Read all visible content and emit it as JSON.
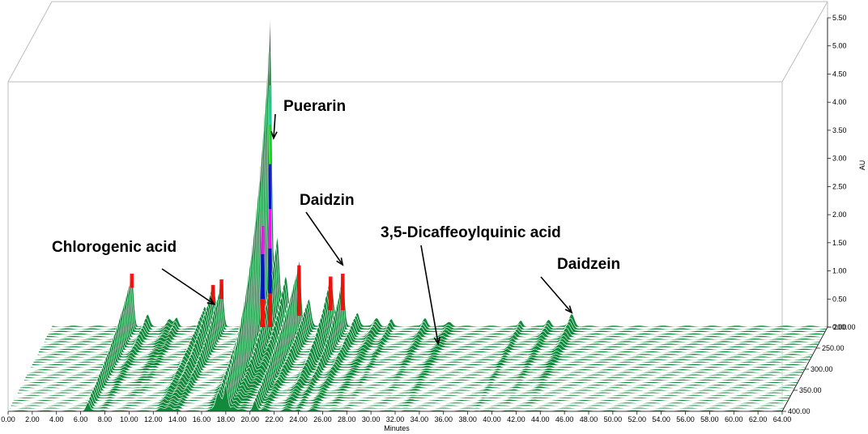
{
  "chart_data": {
    "type": "area",
    "title": "",
    "xlabel": "Minutes",
    "ylabel": "AU",
    "zlabel": "",
    "x_ticks": [
      "0.00",
      "2.00",
      "4.00",
      "6.00",
      "8.00",
      "10.00",
      "12.00",
      "14.00",
      "16.00",
      "18.00",
      "20.00",
      "22.00",
      "24.00",
      "26.00",
      "28.00",
      "30.00",
      "32.00",
      "34.00",
      "36.00",
      "38.00",
      "40.00",
      "42.00",
      "44.00",
      "46.00",
      "48.00",
      "50.00",
      "52.00",
      "54.00",
      "56.00",
      "58.00",
      "60.00",
      "62.00",
      "64.00"
    ],
    "y_ticks": [
      "0.00",
      "0.50",
      "1.00",
      "1.50",
      "2.00",
      "2.50",
      "3.00",
      "3.50",
      "4.00",
      "4.50",
      "5.00",
      "5.50"
    ],
    "z_ticks": [
      "200.00",
      "250.00",
      "300.00",
      "350.00",
      "400.00"
    ],
    "xlim": [
      0,
      64
    ],
    "ylim": [
      0,
      5.5
    ],
    "zlim": [
      200,
      400
    ],
    "series_color": "#118a3c",
    "band_colors": [
      "#118a3c",
      "#ff0000",
      "#0000cc",
      "#ff00ff",
      "#00ff00",
      "#00ffff"
    ],
    "peaks": [
      {
        "x": 6.6,
        "h": 0.95
      },
      {
        "x": 7.9,
        "h": 0.2
      },
      {
        "x": 9.7,
        "h": 0.12
      },
      {
        "x": 10.3,
        "h": 0.15
      },
      {
        "x": 12.6,
        "h": 0.35
      },
      {
        "x": 13.3,
        "h": 0.75
      },
      {
        "x": 14.0,
        "h": 0.85
      },
      {
        "x": 16.7,
        "h": 1.0
      },
      {
        "x": 17.4,
        "h": 2.0
      },
      {
        "x": 18.0,
        "h": 5.45
      },
      {
        "x": 18.6,
        "h": 1.6
      },
      {
        "x": 19.3,
        "h": 0.9
      },
      {
        "x": 20.4,
        "h": 1.2
      },
      {
        "x": 21.2,
        "h": 0.5
      },
      {
        "x": 23.0,
        "h": 0.9
      },
      {
        "x": 24.0,
        "h": 0.95
      },
      {
        "x": 25.2,
        "h": 0.25
      },
      {
        "x": 26.8,
        "h": 0.15
      },
      {
        "x": 28.0,
        "h": 0.12
      },
      {
        "x": 30.8,
        "h": 0.15
      },
      {
        "x": 32.8,
        "h": 0.08
      },
      {
        "x": 38.7,
        "h": 0.1
      },
      {
        "x": 41.0,
        "h": 0.12
      },
      {
        "x": 42.9,
        "h": 0.22
      }
    ],
    "annotations": [
      {
        "label": "Puerarin",
        "x": 18.3,
        "y": 3.3
      },
      {
        "label": "Daidzin",
        "x": 24.0,
        "y": 1.05
      },
      {
        "label": "Chlorogenic acid",
        "x": 13.4,
        "y": 0.35
      },
      {
        "label": "3,5-Dicaffeoylquinic acid",
        "x": 32.8,
        "z": 250
      },
      {
        "label": "Daidzein",
        "x": 42.9,
        "y": 0.2
      }
    ]
  }
}
